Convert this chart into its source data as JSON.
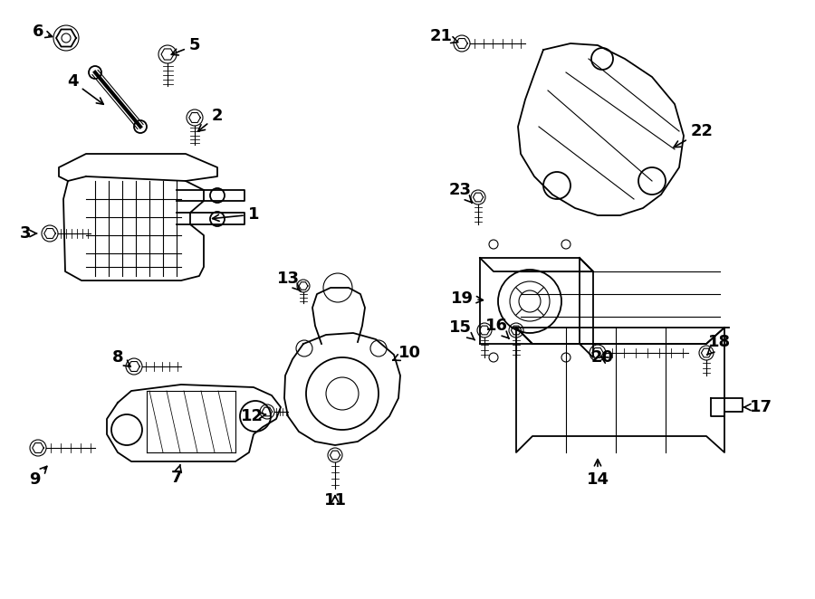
{
  "bg_color": "#ffffff",
  "line_color": "#000000",
  "fig_width": 9.0,
  "fig_height": 6.62,
  "dpi": 100
}
